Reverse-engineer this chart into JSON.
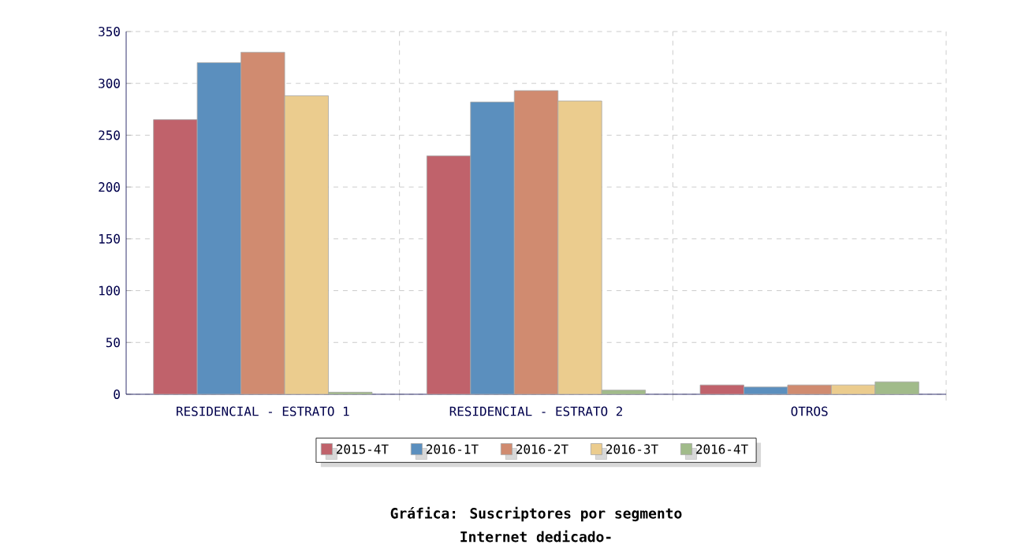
{
  "chart_data": {
    "type": "bar",
    "title": "Gráfica: Suscriptores por segmento",
    "subtitle": "Internet dedicado-",
    "categories": [
      "RESIDENCIAL - ESTRATO 1",
      "RESIDENCIAL - ESTRATO 2",
      "OTROS"
    ],
    "series": [
      {
        "name": "2015-4T",
        "color": "#c0626b",
        "values": [
          265,
          230,
          9
        ]
      },
      {
        "name": "2016-1T",
        "color": "#5b8fbe",
        "values": [
          320,
          282,
          7
        ]
      },
      {
        "name": "2016-2T",
        "color": "#d08b70",
        "values": [
          330,
          293,
          9
        ]
      },
      {
        "name": "2016-3T",
        "color": "#ebcc8e",
        "values": [
          288,
          283,
          9
        ]
      },
      {
        "name": "2016-4T",
        "color": "#a1bb8a",
        "values": [
          2,
          4,
          12
        ]
      }
    ],
    "ylim": [
      0,
      350
    ],
    "yticks": [
      0,
      50,
      100,
      150,
      200,
      250,
      300,
      350
    ],
    "grid": true,
    "legend": "bottom"
  }
}
